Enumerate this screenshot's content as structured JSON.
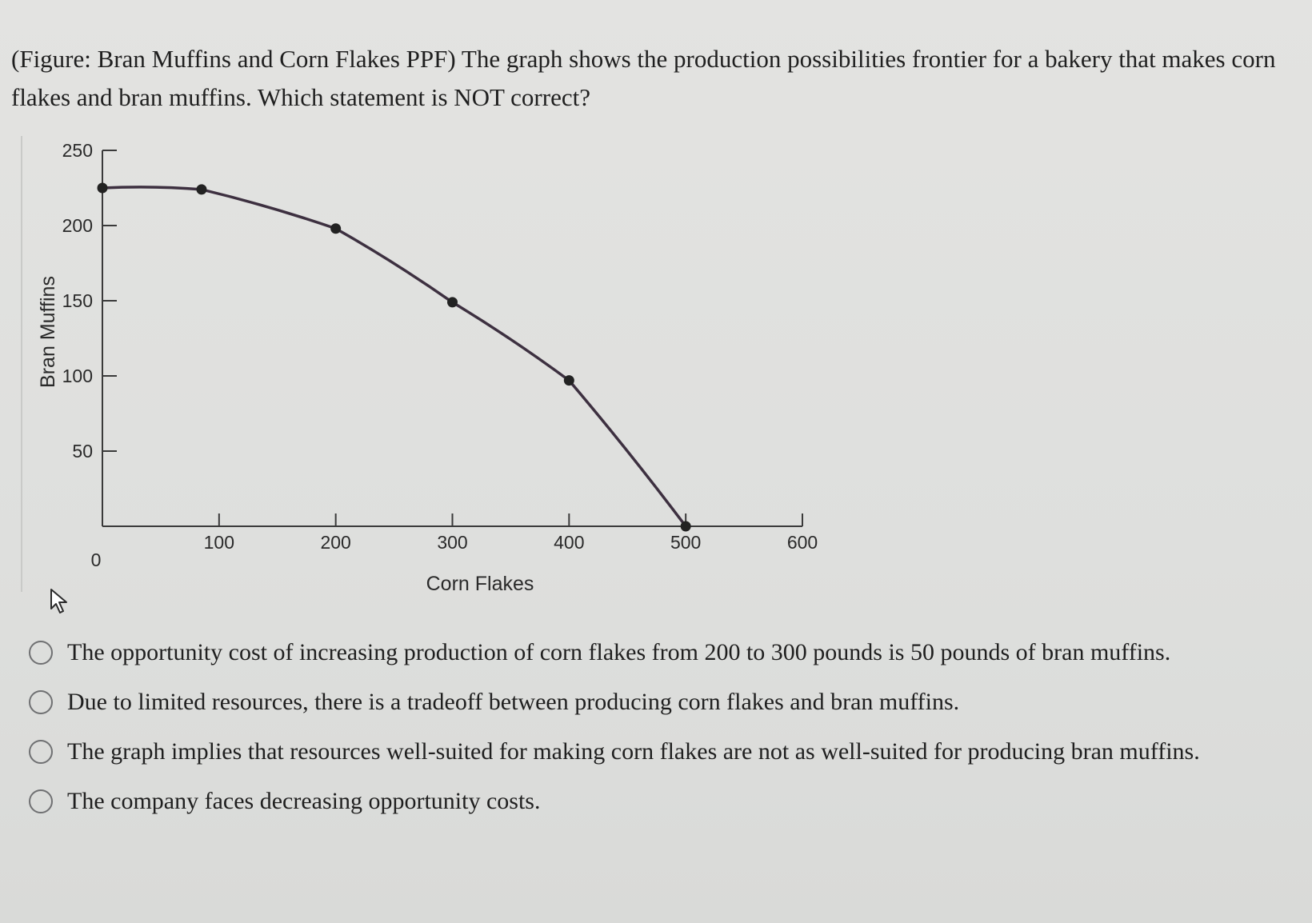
{
  "question": {
    "text": "(Figure: Bran Muffins and Corn Flakes PPF) The graph shows the production possibilities frontier for a bakery that makes corn flakes and bran muffins. Which statement is NOT correct?"
  },
  "chart_data": {
    "type": "line",
    "title": "",
    "xlabel": "Corn Flakes",
    "ylabel": "Bran Muffins",
    "xlim": [
      0,
      600
    ],
    "ylim": [
      0,
      250
    ],
    "x_ticks": [
      100,
      200,
      300,
      400,
      500,
      600
    ],
    "y_ticks": [
      50,
      100,
      150,
      200,
      250
    ],
    "origin_label": "0",
    "grid": false,
    "series": [
      {
        "points": [
          {
            "x": 0,
            "y": 225
          },
          {
            "x": 85,
            "y": 224
          },
          {
            "x": 200,
            "y": 198
          },
          {
            "x": 300,
            "y": 149
          },
          {
            "x": 400,
            "y": 97
          },
          {
            "x": 500,
            "y": 0
          }
        ]
      }
    ]
  },
  "options": [
    {
      "text": "The opportunity cost of increasing production of corn flakes from 200 to 300 pounds is 50 pounds of bran muffins."
    },
    {
      "text": "Due to limited resources, there is a tradeoff between producing corn flakes and bran muffins."
    },
    {
      "text": "The graph implies that resources well-suited for making corn flakes are not as well-suited for producing bran muffins."
    },
    {
      "text": "The company faces decreasing opportunity costs."
    }
  ]
}
